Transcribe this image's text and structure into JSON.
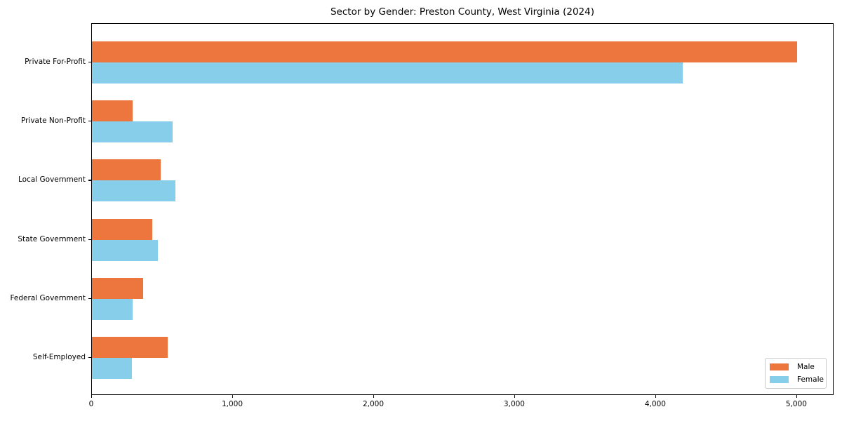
{
  "title": "Sector by Gender: Preston County, West Virginia (2024)",
  "chart_data": {
    "type": "bar",
    "orientation": "horizontal",
    "title": "Sector by Gender: Preston County, West Virginia (2024)",
    "xlabel": "",
    "ylabel": "",
    "categories": [
      "Private For-Profit",
      "Private Non-Profit",
      "Local Government",
      "State Government",
      "Federal Government",
      "Self-Employed"
    ],
    "series": [
      {
        "name": "Male",
        "color": "#ec763d",
        "values": [
          5000,
          290,
          490,
          430,
          365,
          535
        ]
      },
      {
        "name": "Female",
        "color": "#87ceeb",
        "values": [
          4190,
          570,
          590,
          470,
          290,
          285
        ]
      }
    ],
    "xlim": [
      0,
      5264
    ],
    "x_ticks": [
      0,
      1000,
      2000,
      3000,
      4000,
      5000
    ],
    "x_tick_labels": [
      "0",
      "1,000",
      "2,000",
      "3,000",
      "4,000",
      "5,000"
    ],
    "grid": false,
    "legend_position": "lower right"
  },
  "colors": {
    "spine": "#000000",
    "text": "#000000",
    "legend_border": "#cccccc",
    "background": "#ffffff"
  }
}
